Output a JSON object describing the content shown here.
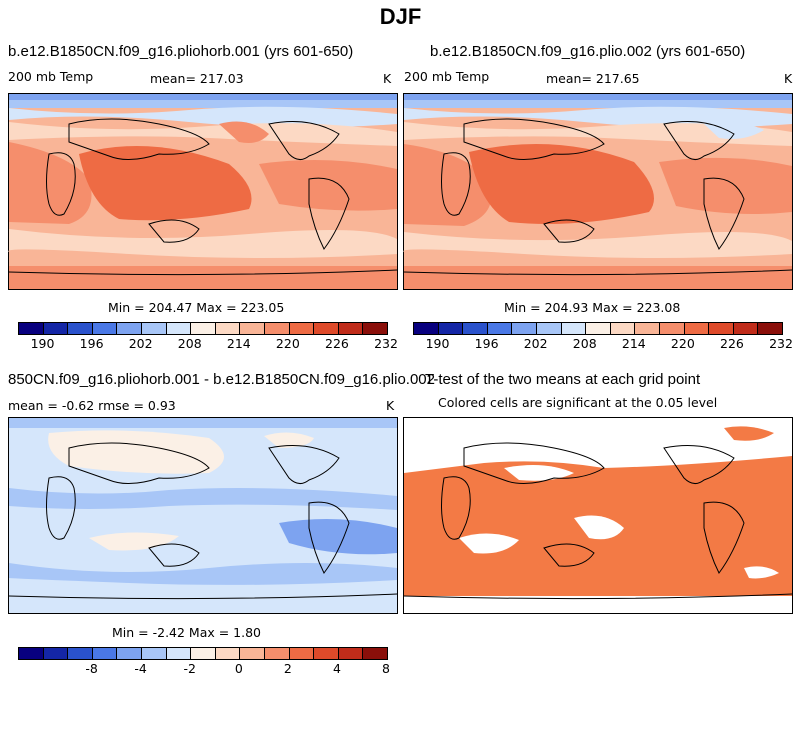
{
  "page_title": "DJF",
  "panels": {
    "p1": {
      "title": "b.e12.B1850CN.f09_g16.pliohorb.001 (yrs 601-650)",
      "left_label": "200 mb Temp",
      "center_label": "mean= 217.03",
      "right_label": "K",
      "stats": "Min = 204.47  Max = 223.05"
    },
    "p2": {
      "title": "b.e12.B1850CN.f09_g16.plio.002 (yrs 601-650)",
      "left_label": "200 mb Temp",
      "center_label": "mean= 217.65",
      "right_label": "K",
      "stats": "Min = 204.93  Max = 223.08"
    },
    "p3": {
      "title": "850CN.f09_g16.pliohorb.001 - b.e12.B1850CN.f09_g16.plio.002",
      "left_label": "mean =   -0.62       rmse =    0.93",
      "right_label": "K",
      "stats": "Min =  -2.42  Max =   1.80"
    },
    "p4": {
      "title": "T-test of the two means at each grid point",
      "subtitle": "Colored cells are significant at the 0.05 level"
    }
  },
  "colorbars": {
    "temp": {
      "colors": [
        "#08007f",
        "#1426a6",
        "#2a52cc",
        "#4a78e6",
        "#7da3f0",
        "#a8c6f7",
        "#d5e6fb",
        "#fbf0e6",
        "#fcd9c4",
        "#f9b597",
        "#f58e6c",
        "#ee6b44",
        "#de4a2a",
        "#c02c1a",
        "#8a0f0a"
      ],
      "ticks": [
        "190",
        "196",
        "202",
        "208",
        "214",
        "220",
        "226",
        "232"
      ]
    },
    "diff": {
      "colors": [
        "#08007f",
        "#1426a6",
        "#2a52cc",
        "#4a78e6",
        "#7da3f0",
        "#a8c6f7",
        "#d5e6fb",
        "#fbf0e6",
        "#fcd9c4",
        "#f9b597",
        "#f58e6c",
        "#ee6b44",
        "#de4a2a",
        "#c02c1a",
        "#8a0f0a"
      ],
      "ticks": [
        "-8",
        "-4",
        "-2",
        "0",
        "2",
        "4",
        "8"
      ]
    }
  },
  "chart_data": [
    {
      "type": "heatmap",
      "title": "b.e12.B1850CN.f09_g16.pliohorb.001 (yrs 601-650)",
      "variable": "200 mb Temp",
      "units": "K",
      "mean": 217.03,
      "min": 204.47,
      "max": 223.05,
      "levels": [
        190,
        196,
        202,
        208,
        214,
        220,
        226,
        232
      ]
    },
    {
      "type": "heatmap",
      "title": "b.e12.B1850CN.f09_g16.plio.002 (yrs 601-650)",
      "variable": "200 mb Temp",
      "units": "K",
      "mean": 217.65,
      "min": 204.93,
      "max": 223.08,
      "levels": [
        190,
        196,
        202,
        208,
        214,
        220,
        226,
        232
      ]
    },
    {
      "type": "heatmap",
      "title": "pliohorb.001 - plio.002 difference",
      "units": "K",
      "mean": -0.62,
      "rmse": 0.93,
      "min": -2.42,
      "max": 1.8,
      "levels": [
        -8,
        -4,
        -2,
        0,
        2,
        4,
        8
      ]
    },
    {
      "type": "heatmap",
      "title": "T-test of the two means at each grid point",
      "significance_level": 0.05
    }
  ]
}
